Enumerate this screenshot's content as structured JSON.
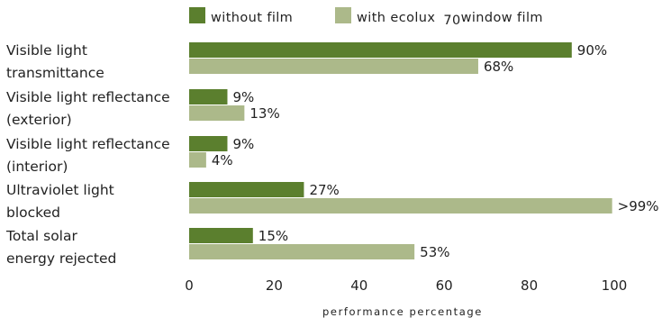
{
  "colors": {
    "without_film": "#5b7f2e",
    "with_film": "#acb98a"
  },
  "legend": {
    "without_film": "without film",
    "with_film": "with ecolux",
    "with_film_raised": "70",
    "with_film_tail": "window film"
  },
  "chart_data": {
    "type": "bar",
    "orientation": "horizontal",
    "categories": [
      [
        "Visible light",
        "transmittance"
      ],
      [
        "Visible light reflectance",
        "(exterior)"
      ],
      [
        "Visible light reflectance",
        "(interior)"
      ],
      [
        "Ultraviolet light",
        "blocked"
      ],
      [
        "Total solar",
        "energy rejected"
      ]
    ],
    "series": [
      {
        "name": "without film",
        "values": [
          90,
          9,
          9,
          27,
          15
        ],
        "labels": [
          "90%",
          "9%",
          "9%",
          "27%",
          "15%"
        ]
      },
      {
        "name": "with ecolux 70 window film",
        "values": [
          68,
          13,
          4,
          99.5,
          53
        ],
        "labels": [
          "68%",
          "13%",
          "4%",
          ">99%",
          "53%"
        ]
      }
    ],
    "xlabel": "performance percentage",
    "xlim": [
      0,
      100
    ],
    "xticks": [
      0,
      20,
      40,
      60,
      80,
      100
    ],
    "grid": false,
    "legend_position": "top"
  }
}
